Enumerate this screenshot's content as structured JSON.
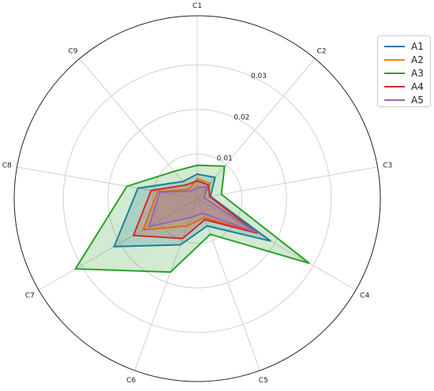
{
  "chart_data": {
    "type": "radar",
    "axes": [
      "C1",
      "C2",
      "C3",
      "C4",
      "C5",
      "C6",
      "C7",
      "C8",
      "C9"
    ],
    "radial_ticks": [
      0.01,
      0.02,
      0.03
    ],
    "radial_tick_labels": [
      "0.01",
      "0.02",
      "0.03"
    ],
    "rmax": 0.041,
    "grid": true,
    "legend_position": "top-right",
    "series": [
      {
        "name": "A1",
        "color": "#1f77b4",
        "values": [
          0.0055,
          0.0062,
          0.003,
          0.019,
          0.0065,
          0.011,
          0.0215,
          0.0135,
          0.005
        ]
      },
      {
        "name": "A2",
        "color": "#ff7f0e",
        "values": [
          0.0045,
          0.0045,
          0.0015,
          0.015,
          0.0045,
          0.0065,
          0.014,
          0.009,
          0.0028
        ]
      },
      {
        "name": "A3",
        "color": "#2ca02c",
        "values": [
          0.0075,
          0.0095,
          0.0055,
          0.029,
          0.0085,
          0.0175,
          0.0315,
          0.016,
          0.008
        ]
      },
      {
        "name": "A4",
        "color": "#d62728",
        "values": [
          0.004,
          0.004,
          0.0028,
          0.0155,
          0.005,
          0.0095,
          0.0165,
          0.0105,
          0.004
        ]
      },
      {
        "name": "A5",
        "color": "#9467bd",
        "values": [
          0.0025,
          0.0035,
          0.0015,
          0.015,
          0.0035,
          0.0045,
          0.0125,
          0.0085,
          0.0022
        ]
      }
    ]
  }
}
